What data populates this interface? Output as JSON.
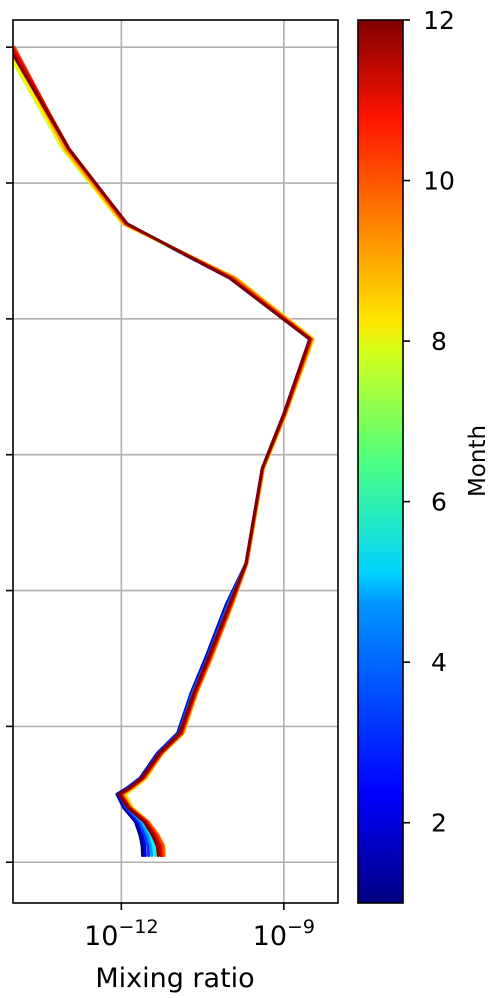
{
  "chart_data": {
    "type": "line",
    "title": "",
    "xlabel": "Mixing ratio",
    "ylabel": "",
    "xscale": "log",
    "xlim": [
      1e-14,
      1e-08
    ],
    "ylim": [
      -0.3,
      6.2
    ],
    "x_ticks": [
      {
        "value": 1e-12,
        "label_base": "10",
        "label_exp": "−12"
      },
      {
        "value": 1e-09,
        "label_base": "10",
        "label_exp": "−9"
      }
    ],
    "y_ticks": [
      0,
      1,
      2,
      3,
      4,
      5,
      6
    ],
    "grid": true,
    "legend": "none",
    "colorbar": {
      "label": "Month",
      "min": 1,
      "max": 12,
      "ticks": [
        2,
        4,
        6,
        8,
        10,
        12
      ],
      "colormap": "jet"
    },
    "series_shape": [
      {
        "y": 6.0,
        "x": 8e-15
      },
      {
        "y": 5.25,
        "x": 1e-13
      },
      {
        "y": 4.7,
        "x": 1.2e-12
      },
      {
        "y": 4.3,
        "x": 1e-10
      },
      {
        "y": 3.85,
        "x": 3e-09
      },
      {
        "y": 3.3,
        "x": 1e-09
      },
      {
        "y": 2.9,
        "x": 4e-10
      },
      {
        "y": 2.2,
        "x": 2e-10
      },
      {
        "y": 1.9,
        "x": 1e-10
      },
      {
        "y": 1.5,
        "x": 4e-11
      },
      {
        "y": 1.25,
        "x": 2.2e-11
      },
      {
        "y": 0.95,
        "x": 1.2e-11
      },
      {
        "y": 0.8,
        "x": 5e-12
      },
      {
        "y": 0.62,
        "x": 2.5e-12
      },
      {
        "y": 0.55,
        "x": 1.5e-12
      },
      {
        "y": 0.5,
        "x": 1e-12
      },
      {
        "y": 0.4,
        "x": 1.4e-12
      },
      {
        "y": 0.3,
        "x": 2.5e-12
      },
      {
        "y": 0.2,
        "x": 3.5e-12
      },
      {
        "y": 0.12,
        "x": 4.2e-12
      },
      {
        "y": 0.05,
        "x": 4.5e-12
      }
    ],
    "series": [
      {
        "month": 1,
        "shift": [
          0,
          0,
          0,
          0,
          0,
          0,
          0,
          0,
          -0.06,
          -0.05,
          -0.05,
          -0.04,
          -0.04,
          -0.05,
          -0.06,
          -0.08,
          -0.1,
          -0.14,
          -0.2,
          -0.24,
          -0.26
        ]
      },
      {
        "month": 2,
        "shift": [
          0,
          0,
          0,
          0,
          0,
          0,
          0,
          0,
          -0.05,
          -0.04,
          -0.04,
          -0.03,
          -0.03,
          -0.04,
          -0.05,
          -0.06,
          -0.08,
          -0.11,
          -0.16,
          -0.19,
          -0.21
        ]
      },
      {
        "month": 3,
        "shift": [
          0,
          0,
          0,
          0.01,
          0,
          0,
          0,
          0,
          -0.03,
          -0.02,
          -0.03,
          -0.02,
          -0.02,
          -0.03,
          -0.04,
          -0.04,
          -0.05,
          -0.07,
          -0.11,
          -0.13,
          -0.15
        ]
      },
      {
        "month": 4,
        "shift": [
          0,
          -0.02,
          0,
          0.02,
          0.01,
          0,
          0,
          0,
          -0.01,
          0,
          -0.01,
          0,
          0,
          0,
          -0.01,
          0,
          -0.01,
          -0.03,
          -0.06,
          -0.08,
          -0.09
        ]
      },
      {
        "month": 5,
        "shift": [
          0,
          -0.04,
          -0.02,
          0.04,
          0.02,
          0.01,
          0,
          0,
          0.01,
          0.01,
          0.01,
          0.02,
          0.02,
          0.03,
          0.03,
          0.04,
          0.02,
          0.01,
          0,
          -0.02,
          -0.03
        ]
      },
      {
        "month": 6,
        "shift": [
          -0.02,
          -0.06,
          -0.04,
          0.07,
          0.04,
          0.02,
          0.01,
          0.01,
          0.03,
          0.03,
          0.03,
          0.04,
          0.04,
          0.06,
          0.07,
          0.08,
          0.06,
          0.04,
          0.04,
          0.03,
          0.02
        ]
      },
      {
        "month": 7,
        "shift": [
          -0.05,
          -0.08,
          -0.06,
          0.1,
          0.06,
          0.03,
          0.02,
          0.02,
          0.05,
          0.05,
          0.05,
          0.06,
          0.05,
          0.07,
          0.08,
          0.08,
          0.07,
          0.07,
          0.08,
          0.09,
          0.08
        ]
      },
      {
        "month": 8,
        "shift": [
          -0.04,
          -0.06,
          -0.05,
          0.12,
          0.07,
          0.04,
          0.03,
          0.02,
          0.06,
          0.06,
          0.06,
          0.07,
          0.06,
          0.06,
          0.06,
          0.06,
          0.06,
          0.09,
          0.12,
          0.14,
          0.13
        ]
      },
      {
        "month": 9,
        "shift": [
          0.05,
          -0.03,
          -0.03,
          0.1,
          0.05,
          0.03,
          0.02,
          0.02,
          0.05,
          0.06,
          0.05,
          0.06,
          0.05,
          0.04,
          0.04,
          0.03,
          0.04,
          0.1,
          0.14,
          0.16,
          0.14
        ]
      },
      {
        "month": 10,
        "shift": [
          0.12,
          0.02,
          0,
          0.06,
          0.03,
          0.02,
          0.01,
          0.01,
          0.04,
          0.04,
          0.04,
          0.04,
          0.04,
          0.02,
          0.02,
          0,
          0.02,
          0.08,
          0.12,
          0.14,
          0.12
        ]
      },
      {
        "month": 11,
        "shift": [
          0.08,
          0.04,
          0.02,
          0.02,
          0.01,
          0.01,
          0,
          0,
          0.02,
          0.02,
          0.02,
          0.02,
          0.02,
          0,
          0,
          -0.02,
          0,
          0.05,
          0.08,
          0.09,
          0.08
        ]
      },
      {
        "month": 12,
        "shift": [
          0.02,
          0.03,
          0.03,
          0,
          0,
          0,
          0,
          0,
          0,
          0,
          0,
          0,
          0,
          -0.02,
          -0.02,
          -0.04,
          -0.02,
          0.02,
          0.03,
          0.04,
          0.03
        ]
      }
    ]
  }
}
